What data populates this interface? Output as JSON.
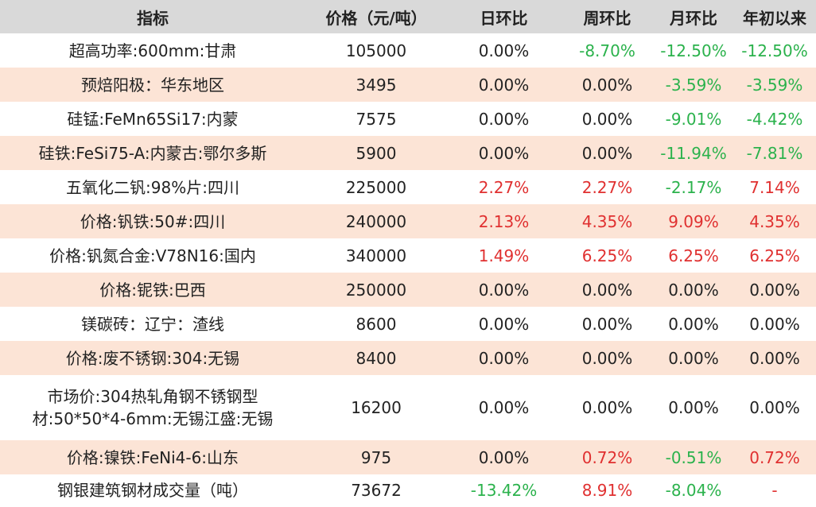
{
  "headers": [
    "指标",
    "价格（元/吨）",
    "日环比",
    "周环比",
    "月环比",
    "年初以来"
  ],
  "rows": [
    {
      "name": "超高功率:600mm:甘肃",
      "price": "105000",
      "day": "0.00%",
      "week": "-8.70%",
      "month": "-12.50%",
      "ytd": "-12.50%"
    },
    {
      "name": "预焙阳极：华东地区",
      "price": "3495",
      "day": "0.00%",
      "week": "0.00%",
      "month": "-3.59%",
      "ytd": "-3.59%"
    },
    {
      "name": "硅锰:FeMn65Si17:内蒙",
      "price": "7575",
      "day": "0.00%",
      "week": "0.00%",
      "month": "-9.01%",
      "ytd": "-4.42%"
    },
    {
      "name": "硅铁:FeSi75-A:内蒙古:鄂尔多斯",
      "price": "5900",
      "day": "0.00%",
      "week": "0.00%",
      "month": "-11.94%",
      "ytd": "-7.81%"
    },
    {
      "name": "五氧化二钒:98%片:四川",
      "price": "225000",
      "day": "2.27%",
      "week": "2.27%",
      "month": "-2.17%",
      "ytd": "7.14%"
    },
    {
      "name": "价格:钒铁:50#:四川",
      "price": "240000",
      "day": "2.13%",
      "week": "4.35%",
      "month": "9.09%",
      "ytd": "4.35%"
    },
    {
      "name": "价格:钒氮合金:V78N16:国内",
      "price": "340000",
      "day": "1.49%",
      "week": "6.25%",
      "month": "6.25%",
      "ytd": "6.25%"
    },
    {
      "name": "价格:铌铁:巴西",
      "price": "250000",
      "day": "0.00%",
      "week": "0.00%",
      "month": "0.00%",
      "ytd": "0.00%"
    },
    {
      "name": "镁碳砖：辽宁：渣线",
      "price": "8600",
      "day": "0.00%",
      "week": "0.00%",
      "month": "0.00%",
      "ytd": "0.00%"
    },
    {
      "name": "价格:废不锈钢:304:无锡",
      "price": "8400",
      "day": "0.00%",
      "week": "0.00%",
      "month": "0.00%",
      "ytd": "0.00%"
    },
    {
      "name": "市场价:304热轧角钢不锈钢型材:50*50*4-6mm:无锡江盛:无锡",
      "price": "16200",
      "day": "0.00%",
      "week": "0.00%",
      "month": "0.00%",
      "ytd": "0.00%"
    },
    {
      "name": "价格:镍铁:FeNi4-6:山东",
      "price": "975",
      "day": "0.00%",
      "week": "0.72%",
      "month": "-0.51%",
      "ytd": "0.72%"
    },
    {
      "name": "钢银建筑钢材成交量（吨）",
      "price": "73672",
      "day": "-13.42%",
      "week": "8.91%",
      "month": "-8.04%",
      "ytd": "-"
    }
  ],
  "colors": {
    "header_bg": "#d9d9d9",
    "shade_bg": "#fce4d6",
    "negative": "#2bb24c",
    "positive": "#e03030",
    "neutral": "#222222"
  }
}
